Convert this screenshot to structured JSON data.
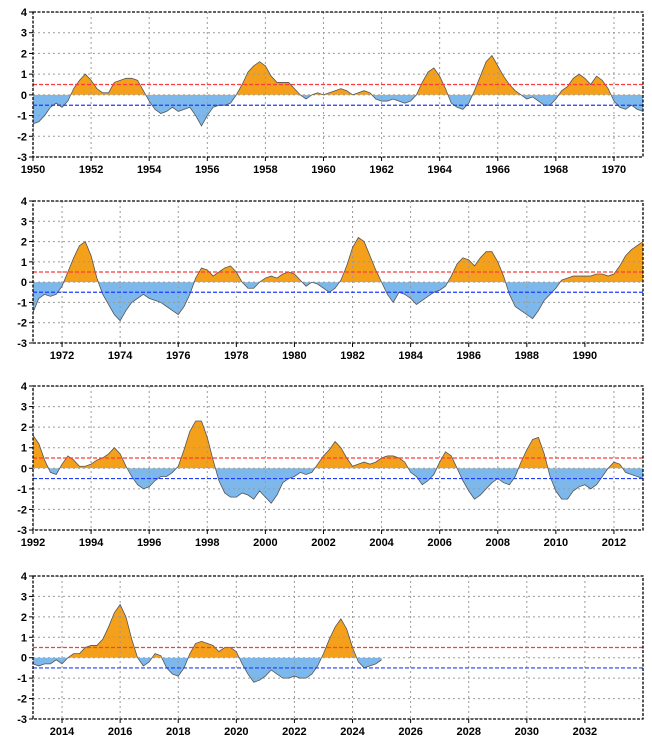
{
  "colors": {
    "positive_fill": "#F5A01A",
    "negative_fill": "#7DB8EC",
    "upper_threshold": "#FF3B3B",
    "lower_threshold": "#1F3BFF",
    "curve": "#555555",
    "grid": "#9a9a9a",
    "frame": "#000000"
  },
  "chart_data": [
    {
      "type": "area",
      "title": "",
      "xlim": [
        1950,
        1971
      ],
      "ylim": [
        -3,
        4
      ],
      "y_ticks": [
        "-3",
        "-2",
        "-1",
        "0",
        "1",
        "2",
        "3",
        "4"
      ],
      "x_ticks": [
        {
          "value": 1950,
          "label": "1950"
        },
        {
          "value": 1952,
          "label": "1952"
        },
        {
          "value": 1954,
          "label": "1954"
        },
        {
          "value": 1956,
          "label": "1956"
        },
        {
          "value": 1958,
          "label": "1958"
        },
        {
          "value": 1960,
          "label": "1960"
        },
        {
          "value": 1962,
          "label": "1962"
        },
        {
          "value": 1964,
          "label": "1964"
        },
        {
          "value": 1966,
          "label": "1966"
        },
        {
          "value": 1968,
          "label": "1968"
        },
        {
          "value": 1970,
          "label": "1970"
        }
      ],
      "thresholds": [
        0.5,
        -0.5
      ],
      "grid": true,
      "x": [
        1950.0,
        1950.2,
        1950.4,
        1950.6,
        1950.8,
        1951.0,
        1951.2,
        1951.4,
        1951.6,
        1951.8,
        1952.0,
        1952.2,
        1952.4,
        1952.6,
        1952.8,
        1953.0,
        1953.2,
        1953.4,
        1953.6,
        1953.8,
        1954.0,
        1954.2,
        1954.4,
        1954.6,
        1954.8,
        1955.0,
        1955.2,
        1955.4,
        1955.6,
        1955.8,
        1956.0,
        1956.2,
        1956.4,
        1956.6,
        1956.8,
        1957.0,
        1957.2,
        1957.4,
        1957.6,
        1957.8,
        1958.0,
        1958.2,
        1958.4,
        1958.6,
        1958.8,
        1959.0,
        1959.2,
        1959.4,
        1959.6,
        1959.8,
        1960.0,
        1960.2,
        1960.4,
        1960.6,
        1960.8,
        1961.0,
        1961.2,
        1961.4,
        1961.6,
        1961.8,
        1962.0,
        1962.2,
        1962.4,
        1962.6,
        1962.8,
        1963.0,
        1963.2,
        1963.4,
        1963.6,
        1963.8,
        1964.0,
        1964.2,
        1964.4,
        1964.6,
        1964.8,
        1965.0,
        1965.2,
        1965.4,
        1965.6,
        1965.8,
        1966.0,
        1966.2,
        1966.4,
        1966.6,
        1966.8,
        1967.0,
        1967.2,
        1967.4,
        1967.6,
        1967.8,
        1968.0,
        1968.2,
        1968.4,
        1968.6,
        1968.8,
        1969.0,
        1969.2,
        1969.4,
        1969.6,
        1969.8,
        1970.0,
        1970.2,
        1970.4,
        1970.6,
        1970.8,
        1971.0
      ],
      "y": [
        -1.4,
        -1.3,
        -1.0,
        -0.6,
        -0.4,
        -0.6,
        -0.3,
        0.3,
        0.7,
        1.0,
        0.7,
        0.3,
        0.1,
        0.1,
        0.6,
        0.7,
        0.8,
        0.8,
        0.7,
        0.2,
        -0.3,
        -0.7,
        -0.9,
        -0.8,
        -0.6,
        -0.8,
        -0.7,
        -0.6,
        -1.0,
        -1.5,
        -1.0,
        -0.6,
        -0.5,
        -0.5,
        -0.4,
        0.0,
        0.5,
        1.1,
        1.4,
        1.6,
        1.4,
        0.9,
        0.6,
        0.6,
        0.6,
        0.3,
        0.0,
        -0.2,
        0.0,
        0.1,
        0.0,
        0.1,
        0.2,
        0.3,
        0.2,
        0.0,
        0.1,
        0.2,
        0.1,
        -0.2,
        -0.3,
        -0.3,
        -0.2,
        -0.3,
        -0.4,
        -0.3,
        0.0,
        0.6,
        1.1,
        1.3,
        0.9,
        0.3,
        -0.4,
        -0.6,
        -0.7,
        -0.4,
        0.2,
        0.9,
        1.6,
        1.9,
        1.4,
        0.9,
        0.5,
        0.2,
        0.0,
        -0.2,
        -0.1,
        -0.3,
        -0.5,
        -0.5,
        -0.2,
        0.2,
        0.4,
        0.8,
        1.0,
        0.8,
        0.5,
        0.9,
        0.7,
        0.3,
        -0.3,
        -0.6,
        -0.7,
        -0.5,
        -0.7,
        -0.8
      ]
    },
    {
      "type": "area",
      "title": "",
      "xlim": [
        1971,
        1992
      ],
      "ylim": [
        -3,
        4
      ],
      "y_ticks": [
        "-3",
        "-2",
        "-1",
        "0",
        "1",
        "2",
        "3",
        "4"
      ],
      "x_ticks": [
        {
          "value": 1972,
          "label": "1972"
        },
        {
          "value": 1974,
          "label": "1974"
        },
        {
          "value": 1976,
          "label": "1976"
        },
        {
          "value": 1978,
          "label": "1978"
        },
        {
          "value": 1980,
          "label": "1980"
        },
        {
          "value": 1982,
          "label": "1982"
        },
        {
          "value": 1984,
          "label": "1984"
        },
        {
          "value": 1986,
          "label": "1986"
        },
        {
          "value": 1988,
          "label": "1988"
        },
        {
          "value": 1990,
          "label": "1990"
        }
      ],
      "thresholds": [
        0.5,
        -0.5
      ],
      "grid": true,
      "x": [
        1971.0,
        1971.2,
        1971.4,
        1971.6,
        1971.8,
        1972.0,
        1972.2,
        1972.4,
        1972.6,
        1972.8,
        1973.0,
        1973.2,
        1973.4,
        1973.6,
        1973.8,
        1974.0,
        1974.2,
        1974.4,
        1974.6,
        1974.8,
        1975.0,
        1975.2,
        1975.4,
        1975.6,
        1975.8,
        1976.0,
        1976.2,
        1976.4,
        1976.6,
        1976.8,
        1977.0,
        1977.2,
        1977.4,
        1977.6,
        1977.8,
        1978.0,
        1978.2,
        1978.4,
        1978.6,
        1978.8,
        1979.0,
        1979.2,
        1979.4,
        1979.6,
        1979.8,
        1980.0,
        1980.2,
        1980.4,
        1980.6,
        1980.8,
        1981.0,
        1981.2,
        1981.4,
        1981.6,
        1981.8,
        1982.0,
        1982.2,
        1982.4,
        1982.6,
        1982.8,
        1983.0,
        1983.2,
        1983.4,
        1983.6,
        1983.8,
        1984.0,
        1984.2,
        1984.4,
        1984.6,
        1984.8,
        1985.0,
        1985.2,
        1985.4,
        1985.6,
        1985.8,
        1986.0,
        1986.2,
        1986.4,
        1986.6,
        1986.8,
        1987.0,
        1987.2,
        1987.4,
        1987.6,
        1987.8,
        1988.0,
        1988.2,
        1988.4,
        1988.6,
        1988.8,
        1989.0,
        1989.2,
        1989.4,
        1989.6,
        1989.8,
        1990.0,
        1990.2,
        1990.4,
        1990.6,
        1990.8,
        1991.0,
        1991.2,
        1991.4,
        1991.6,
        1991.8,
        1992.0
      ],
      "y": [
        -1.5,
        -0.8,
        -0.6,
        -0.7,
        -0.6,
        -0.2,
        0.5,
        1.2,
        1.8,
        2.0,
        1.3,
        0.2,
        -0.6,
        -1.1,
        -1.6,
        -1.9,
        -1.4,
        -1.0,
        -0.8,
        -0.6,
        -0.8,
        -0.9,
        -1.0,
        -1.2,
        -1.4,
        -1.6,
        -1.2,
        -0.6,
        0.2,
        0.7,
        0.6,
        0.3,
        0.5,
        0.7,
        0.8,
        0.5,
        0.0,
        -0.3,
        -0.3,
        0.0,
        0.2,
        0.3,
        0.2,
        0.4,
        0.5,
        0.4,
        0.1,
        -0.2,
        0.0,
        -0.1,
        -0.3,
        -0.5,
        -0.3,
        0.1,
        0.8,
        1.7,
        2.2,
        2.0,
        1.3,
        0.6,
        0.0,
        -0.6,
        -1.0,
        -0.5,
        -0.6,
        -0.8,
        -1.1,
        -0.9,
        -0.7,
        -0.5,
        -0.4,
        -0.2,
        0.3,
        0.9,
        1.2,
        1.1,
        0.8,
        1.2,
        1.5,
        1.5,
        1.0,
        0.3,
        -0.6,
        -1.2,
        -1.4,
        -1.6,
        -1.8,
        -1.4,
        -0.9,
        -0.6,
        -0.3,
        0.1,
        0.2,
        0.3,
        0.3,
        0.3,
        0.3,
        0.4,
        0.4,
        0.3,
        0.4,
        0.8,
        1.3,
        1.6,
        1.8,
        2.0
      ]
    },
    {
      "type": "area",
      "title": "",
      "xlim": [
        1992,
        2013
      ],
      "ylim": [
        -3,
        4
      ],
      "y_ticks": [
        "-3",
        "-2",
        "-1",
        "0",
        "1",
        "2",
        "3",
        "4"
      ],
      "x_ticks": [
        {
          "value": 1992,
          "label": "1992"
        },
        {
          "value": 1994,
          "label": "1994"
        },
        {
          "value": 1996,
          "label": "1996"
        },
        {
          "value": 1998,
          "label": "1998"
        },
        {
          "value": 2000,
          "label": "2000"
        },
        {
          "value": 2002,
          "label": "2002"
        },
        {
          "value": 2004,
          "label": "2004"
        },
        {
          "value": 2006,
          "label": "2006"
        },
        {
          "value": 2008,
          "label": "2008"
        },
        {
          "value": 2010,
          "label": "2010"
        },
        {
          "value": 2012,
          "label": "2012"
        }
      ],
      "thresholds": [
        0.5,
        -0.5
      ],
      "grid": true,
      "x": [
        1992.0,
        1992.2,
        1992.4,
        1992.6,
        1992.8,
        1993.0,
        1993.2,
        1993.4,
        1993.6,
        1993.8,
        1994.0,
        1994.2,
        1994.4,
        1994.6,
        1994.8,
        1995.0,
        1995.2,
        1995.4,
        1995.6,
        1995.8,
        1996.0,
        1996.2,
        1996.4,
        1996.6,
        1996.8,
        1997.0,
        1997.2,
        1997.4,
        1997.6,
        1997.8,
        1998.0,
        1998.2,
        1998.4,
        1998.6,
        1998.8,
        1999.0,
        1999.2,
        1999.4,
        1999.6,
        1999.8,
        2000.0,
        2000.2,
        2000.4,
        2000.6,
        2000.8,
        2001.0,
        2001.2,
        2001.4,
        2001.6,
        2001.8,
        2002.0,
        2002.2,
        2002.4,
        2002.6,
        2002.8,
        2003.0,
        2003.2,
        2003.4,
        2003.6,
        2003.8,
        2004.0,
        2004.2,
        2004.4,
        2004.6,
        2004.8,
        2005.0,
        2005.2,
        2005.4,
        2005.6,
        2005.8,
        2006.0,
        2006.2,
        2006.4,
        2006.6,
        2006.8,
        2007.0,
        2007.2,
        2007.4,
        2007.6,
        2007.8,
        2008.0,
        2008.2,
        2008.4,
        2008.6,
        2008.8,
        2009.0,
        2009.2,
        2009.4,
        2009.6,
        2009.8,
        2010.0,
        2010.2,
        2010.4,
        2010.6,
        2010.8,
        2011.0,
        2011.2,
        2011.4,
        2011.6,
        2011.8,
        2012.0,
        2012.2,
        2012.4,
        2012.6,
        2012.8,
        2013.0
      ],
      "y": [
        1.6,
        1.2,
        0.4,
        -0.2,
        -0.3,
        0.2,
        0.6,
        0.4,
        0.1,
        0.1,
        0.2,
        0.4,
        0.5,
        0.7,
        1.0,
        0.7,
        0.1,
        -0.4,
        -0.8,
        -1.0,
        -0.9,
        -0.6,
        -0.4,
        -0.4,
        -0.2,
        0.1,
        0.9,
        1.8,
        2.3,
        2.3,
        1.5,
        0.4,
        -0.6,
        -1.2,
        -1.4,
        -1.4,
        -1.2,
        -1.3,
        -1.5,
        -1.1,
        -1.4,
        -1.7,
        -1.3,
        -0.7,
        -0.5,
        -0.4,
        -0.2,
        -0.3,
        -0.2,
        0.2,
        0.6,
        0.9,
        1.3,
        1.0,
        0.5,
        0.1,
        0.2,
        0.3,
        0.2,
        0.3,
        0.5,
        0.6,
        0.6,
        0.5,
        0.3,
        -0.2,
        -0.4,
        -0.8,
        -0.6,
        -0.3,
        0.3,
        0.8,
        0.6,
        0.0,
        -0.6,
        -1.1,
        -1.5,
        -1.3,
        -1.0,
        -0.7,
        -0.5,
        -0.7,
        -0.8,
        -0.4,
        0.3,
        0.9,
        1.4,
        1.5,
        0.7,
        -0.4,
        -1.1,
        -1.5,
        -1.5,
        -1.1,
        -0.9,
        -0.8,
        -1.0,
        -0.8,
        -0.4,
        0.0,
        0.3,
        0.2,
        -0.2,
        -0.3,
        -0.4,
        -0.5
      ]
    },
    {
      "type": "area",
      "title": "",
      "xlim": [
        2013,
        2034
      ],
      "ylim": [
        -3,
        4
      ],
      "y_ticks": [
        "-3",
        "-2",
        "-1",
        "0",
        "1",
        "2",
        "3",
        "4"
      ],
      "x_ticks": [
        {
          "value": 2014,
          "label": "2014"
        },
        {
          "value": 2016,
          "label": "2016"
        },
        {
          "value": 2018,
          "label": "2018"
        },
        {
          "value": 2020,
          "label": "2020"
        },
        {
          "value": 2022,
          "label": "2022"
        },
        {
          "value": 2024,
          "label": "2024"
        },
        {
          "value": 2026,
          "label": "2026"
        },
        {
          "value": 2028,
          "label": "2028"
        },
        {
          "value": 2030,
          "label": "2030"
        },
        {
          "value": 2032,
          "label": "2032"
        }
      ],
      "thresholds": [
        0.5,
        -0.5
      ],
      "grid": true,
      "x": [
        2013.0,
        2013.2,
        2013.4,
        2013.6,
        2013.8,
        2014.0,
        2014.2,
        2014.4,
        2014.6,
        2014.8,
        2015.0,
        2015.2,
        2015.4,
        2015.6,
        2015.8,
        2016.0,
        2016.2,
        2016.4,
        2016.6,
        2016.8,
        2017.0,
        2017.2,
        2017.4,
        2017.6,
        2017.8,
        2018.0,
        2018.2,
        2018.4,
        2018.6,
        2018.8,
        2019.0,
        2019.2,
        2019.4,
        2019.6,
        2019.8,
        2020.0,
        2020.2,
        2020.4,
        2020.6,
        2020.8,
        2021.0,
        2021.2,
        2021.4,
        2021.6,
        2021.8,
        2022.0,
        2022.2,
        2022.4,
        2022.6,
        2022.8,
        2023.0,
        2023.2,
        2023.4,
        2023.6,
        2023.8,
        2024.0,
        2024.2,
        2024.4,
        2024.6,
        2024.8,
        2025.0
      ],
      "y": [
        -0.3,
        -0.4,
        -0.3,
        -0.3,
        -0.1,
        -0.3,
        0.0,
        0.2,
        0.2,
        0.5,
        0.6,
        0.6,
        0.9,
        1.5,
        2.2,
        2.6,
        2.0,
        0.9,
        0.0,
        -0.4,
        -0.2,
        0.2,
        0.1,
        -0.5,
        -0.8,
        -0.9,
        -0.5,
        0.2,
        0.7,
        0.8,
        0.7,
        0.6,
        0.3,
        0.5,
        0.5,
        0.3,
        -0.3,
        -0.8,
        -1.2,
        -1.1,
        -0.9,
        -0.6,
        -0.8,
        -1.0,
        -1.0,
        -0.9,
        -1.0,
        -1.0,
        -0.8,
        -0.4,
        0.2,
        0.9,
        1.5,
        1.9,
        1.4,
        0.5,
        -0.2,
        -0.5,
        -0.4,
        -0.3,
        -0.1
      ]
    }
  ]
}
